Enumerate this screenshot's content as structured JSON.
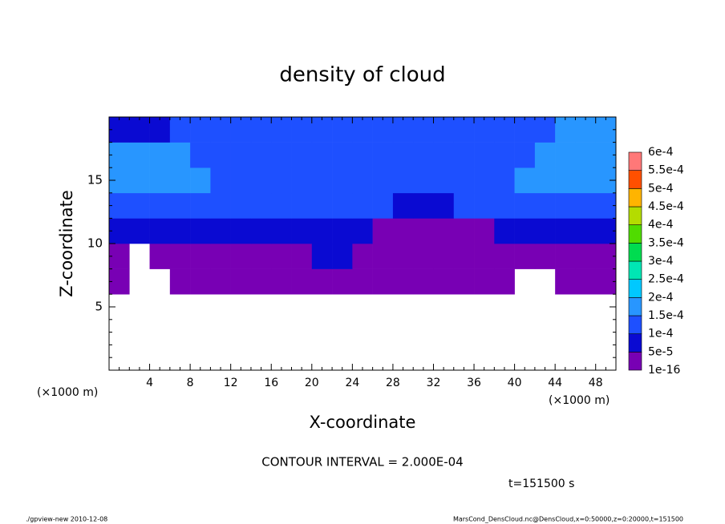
{
  "chart_data": {
    "type": "contour",
    "title": "density of cloud",
    "xlabel": "X-coordinate",
    "ylabel": "Z-coordinate",
    "xunit": "(×1000 m)",
    "yunit": "(×1000 m)",
    "interval_note": "CONTOUR INTERVAL = 2.000E-04",
    "time_note": "t=151500 s",
    "footer_left": "./gpview-new  2010-12-08",
    "footer_right": "MarsCond_DensCloud.nc@DensCloud,x=0:50000,z=0:20000,t=151500",
    "xlim": [
      0,
      50
    ],
    "ylim": [
      0,
      20
    ],
    "xticks": [
      4,
      8,
      12,
      16,
      20,
      24,
      28,
      32,
      36,
      40,
      44,
      48
    ],
    "yticks": [
      5,
      10,
      15
    ],
    "xminor": [
      1,
      2,
      3,
      5,
      6,
      7,
      9,
      10,
      11,
      13,
      14,
      15,
      17,
      18,
      19,
      21,
      22,
      23,
      25,
      26,
      27,
      29,
      30,
      31,
      33,
      34,
      35,
      37,
      38,
      39,
      41,
      42,
      43,
      45,
      46,
      47,
      49
    ],
    "yminor": [
      1,
      2,
      3,
      4,
      6,
      7,
      8,
      9,
      11,
      12,
      13,
      14,
      16,
      17,
      18,
      19
    ],
    "xbins": [
      0,
      2,
      4,
      6,
      8,
      10,
      12,
      14,
      16,
      18,
      20,
      22,
      24,
      26,
      28,
      30,
      32,
      34,
      36,
      38,
      40,
      42,
      44,
      46,
      48,
      50
    ],
    "ybins": [
      0,
      2,
      4,
      6,
      8,
      10,
      12,
      14,
      16,
      18,
      20
    ],
    "values": [
      [
        null,
        null,
        null,
        null,
        null,
        null,
        null,
        null,
        null,
        null,
        null,
        null,
        null,
        null,
        null,
        null,
        null,
        null,
        null,
        null,
        null,
        null,
        null,
        null,
        null
      ],
      [
        null,
        null,
        null,
        null,
        null,
        null,
        null,
        null,
        null,
        null,
        null,
        null,
        null,
        null,
        null,
        null,
        null,
        null,
        null,
        null,
        null,
        null,
        null,
        null,
        null
      ],
      [
        null,
        null,
        null,
        null,
        null,
        null,
        null,
        null,
        null,
        null,
        null,
        null,
        null,
        null,
        null,
        null,
        null,
        null,
        null,
        null,
        null,
        null,
        null,
        null,
        null
      ],
      [
        1e-05,
        null,
        null,
        1e-05,
        1e-05,
        1e-05,
        1e-05,
        1e-05,
        1e-05,
        1e-05,
        1e-05,
        1e-05,
        1e-05,
        1e-05,
        1e-05,
        1e-05,
        1e-05,
        1e-05,
        1e-05,
        1e-05,
        null,
        null,
        1e-05,
        1e-05,
        1e-05
      ],
      [
        1e-05,
        null,
        1e-05,
        1e-05,
        1e-05,
        1e-05,
        1e-05,
        1e-05,
        1e-05,
        1e-05,
        7e-05,
        7e-05,
        1e-05,
        1e-05,
        1e-05,
        1e-05,
        1e-05,
        1e-05,
        1e-05,
        1e-05,
        1e-05,
        1e-05,
        1e-05,
        1e-05,
        1e-05
      ],
      [
        7e-05,
        7e-05,
        7e-05,
        7e-05,
        7e-05,
        7e-05,
        7e-05,
        7e-05,
        7e-05,
        7e-05,
        7e-05,
        7e-05,
        7e-05,
        1e-05,
        1e-05,
        1e-05,
        1e-05,
        1e-05,
        1e-05,
        7e-05,
        7e-05,
        7e-05,
        7e-05,
        7e-05,
        7e-05
      ],
      [
        0.00012,
        0.00012,
        0.00012,
        0.00012,
        0.00012,
        0.00012,
        0.00012,
        0.00012,
        0.00012,
        0.00012,
        0.00012,
        0.00012,
        0.00012,
        0.00012,
        7e-05,
        7e-05,
        7e-05,
        0.00012,
        0.00012,
        0.00012,
        0.00012,
        0.00012,
        0.00012,
        0.00012,
        0.00012
      ],
      [
        0.00016,
        0.00016,
        0.00016,
        0.00016,
        0.00016,
        0.00012,
        0.00012,
        0.00012,
        0.00012,
        0.00012,
        0.00012,
        0.00012,
        0.00012,
        0.00012,
        0.00012,
        0.00012,
        0.00012,
        0.00012,
        0.00012,
        0.00012,
        0.00016,
        0.00016,
        0.00016,
        0.00016,
        0.00016
      ],
      [
        0.00016,
        0.00016,
        0.00016,
        0.00016,
        0.00012,
        0.00012,
        0.00012,
        0.00012,
        0.00012,
        0.00012,
        0.00012,
        0.00012,
        0.00012,
        0.00012,
        0.00012,
        0.00012,
        0.00012,
        0.00012,
        0.00012,
        0.00012,
        0.00012,
        0.00016,
        0.00016,
        0.00016,
        0.00016
      ],
      [
        7e-05,
        7e-05,
        7e-05,
        0.00012,
        0.00012,
        0.00012,
        0.00012,
        0.00012,
        0.00012,
        0.00012,
        0.00012,
        0.00012,
        0.00012,
        0.00012,
        0.00012,
        0.00012,
        0.00012,
        0.00012,
        0.00012,
        0.00012,
        0.00012,
        0.00012,
        0.00016,
        0.00016,
        0.00016
      ]
    ],
    "levels": [
      1e-16,
      {
        "value": 5e-05,
        "label": "5e-5"
      },
      {
        "value": 0.0001,
        "label": "1e-4"
      },
      {
        "value": 0.00015,
        "label": "1.5e-4"
      },
      {
        "value": 0.0002,
        "label": "2e-4"
      },
      {
        "value": 0.00025,
        "label": "2.5e-4"
      },
      {
        "value": 0.0003,
        "label": "3e-4"
      },
      {
        "value": 0.00035,
        "label": "3.5e-4"
      },
      {
        "value": 0.0004,
        "label": "4e-4"
      },
      {
        "value": 0.00045,
        "label": "4.5e-4"
      },
      {
        "value": 0.0005,
        "label": "5e-4"
      },
      {
        "value": 0.00055,
        "label": "5.5e-4"
      },
      {
        "value": 0.0006,
        "label": "6e-4"
      }
    ],
    "colors": [
      "#7800b4",
      "#0a0ad2",
      "#1e50ff",
      "#2896ff",
      "#00c8ff",
      "#00e6b4",
      "#00dc50",
      "#50dc00",
      "#b4dc00",
      "#ffb400",
      "#ff5000",
      "#ff7878"
    ]
  }
}
